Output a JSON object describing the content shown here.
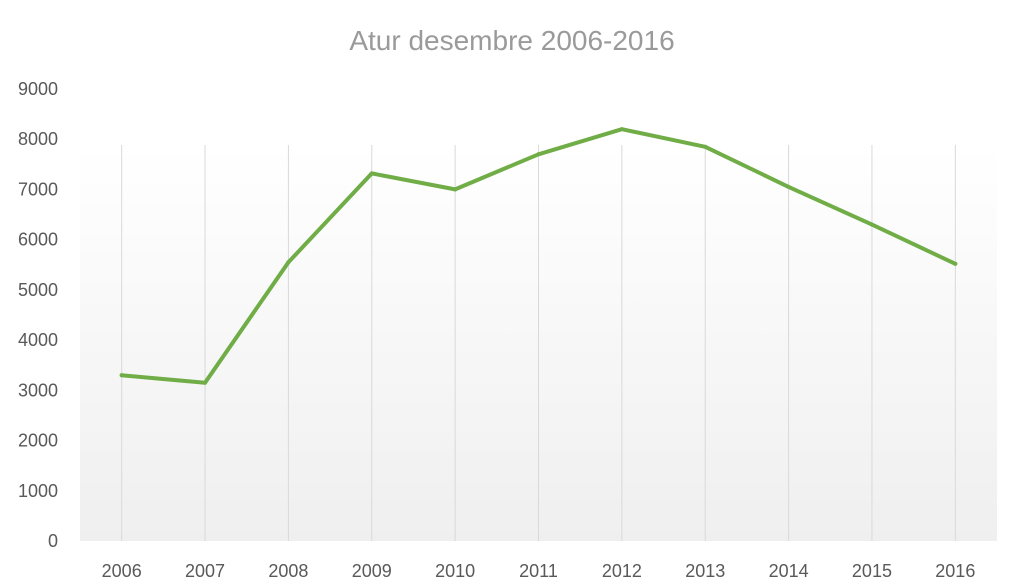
{
  "chart_data": {
    "type": "line",
    "title": "Atur desembre 2006-2016",
    "xlabel": "",
    "ylabel": "",
    "categories": [
      "2006",
      "2007",
      "2008",
      "2009",
      "2010",
      "2011",
      "2012",
      "2013",
      "2014",
      "2015",
      "2016"
    ],
    "series": [
      {
        "values": [
          3300,
          3150,
          5550,
          7320,
          7000,
          7700,
          8200,
          7850,
          7050,
          6300,
          5520
        ],
        "color": "#70ad47"
      }
    ],
    "ylim": [
      0,
      9000
    ],
    "yticks": [
      "0",
      "1000",
      "2000",
      "3000",
      "4000",
      "5000",
      "6000",
      "7000",
      "8000",
      "9000"
    ],
    "grid": "vertical",
    "legend": "none",
    "plot_background": "gradient #ffffff to #f0f0f0"
  }
}
